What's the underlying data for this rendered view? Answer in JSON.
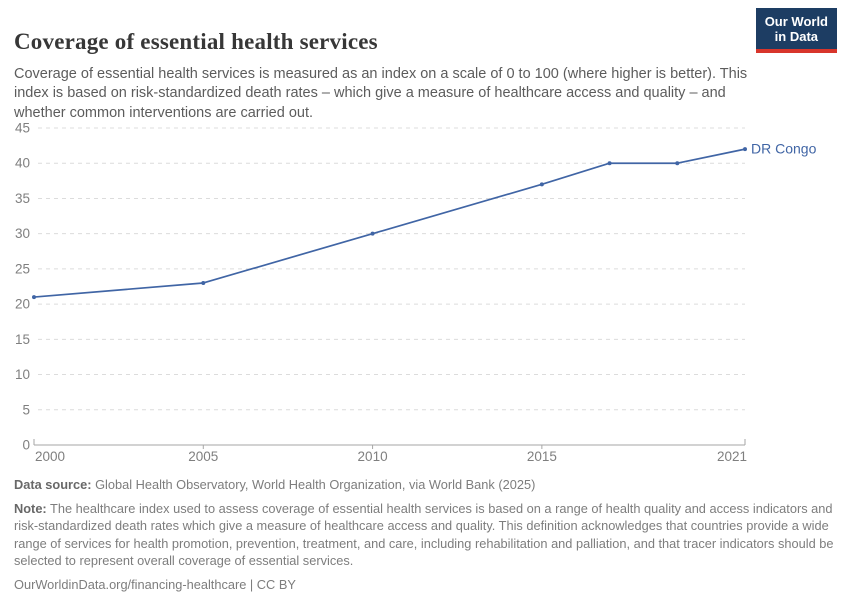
{
  "header": {
    "title": "Coverage of essential health services",
    "subtitle": "Coverage of essential health services is measured as an index on a scale of 0 to 100 (where higher is better). This index is based on risk-standardized death rates – which give a measure of healthcare access and quality – and whether common interventions are carried out.",
    "logo": {
      "line1": "Our World",
      "line2": "in Data"
    }
  },
  "chart_data": {
    "type": "line",
    "title": "Coverage of essential health services",
    "xlabel": "",
    "ylabel": "",
    "xlim": [
      2000,
      2021
    ],
    "ylim": [
      0,
      45
    ],
    "x_ticks": [
      2000,
      2005,
      2010,
      2015,
      2021
    ],
    "y_ticks": [
      0,
      5,
      10,
      15,
      20,
      25,
      30,
      35,
      40,
      45
    ],
    "grid": "horizontal dashed",
    "legend": "end-of-line label",
    "series": [
      {
        "name": "DR Congo",
        "color": "#4065a5",
        "points": [
          {
            "x": 2000,
            "y": 21
          },
          {
            "x": 2005,
            "y": 23
          },
          {
            "x": 2010,
            "y": 30
          },
          {
            "x": 2015,
            "y": 37
          },
          {
            "x": 2017,
            "y": 40
          },
          {
            "x": 2019,
            "y": 40
          },
          {
            "x": 2021,
            "y": 42
          }
        ]
      }
    ]
  },
  "footer": {
    "data_source_label": "Data source:",
    "data_source_text": " Global Health Observatory, World Health Organization, via World Bank (2025)",
    "note_label": "Note:",
    "note_text": " The healthcare index used to assess coverage of essential health services is based on a range of health quality and access indicators and risk-standardized death rates which give a measure of healthcare access and quality. This definition acknowledges that countries provide a wide range of services for health promotion, prevention, treatment, and care, including rehabilitation and palliation, and that tracer indicators should be selected to represent overall coverage of essential services.",
    "url_line": "OurWorldinData.org/financing-healthcare | CC BY"
  },
  "colors": {
    "line": "#4065a5",
    "grid": "#dcdcdc",
    "axis": "#a6a6a6",
    "tick_text": "#7f7f7f",
    "title": "#373737",
    "subtitle": "#5c5c5c",
    "footer": "#7d7d7d",
    "logo_bg": "#1d3d63",
    "logo_bar": "#d8352b"
  }
}
